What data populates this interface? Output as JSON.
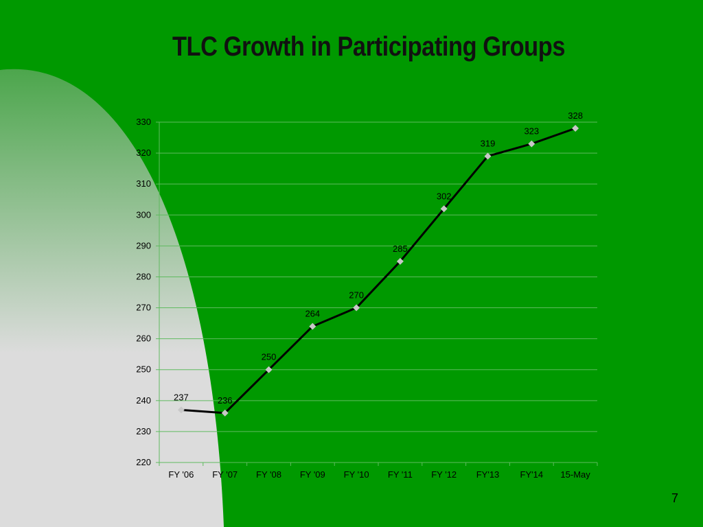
{
  "slide": {
    "title": "TLC Growth in Participating Groups",
    "page_number": "7"
  },
  "colors": {
    "background": "#009900",
    "swoosh_light": "#dcdcdc",
    "swoosh_mid": "#4ca64c",
    "gridline": "#5fba5f",
    "line": "#000000",
    "marker": "#c8c8c8"
  },
  "chart_data": {
    "type": "line",
    "title": "TLC Growth in Participating Groups",
    "xlabel": "",
    "ylabel": "",
    "categories": [
      "FY '06",
      "FY '07",
      "FY '08",
      "FY '09",
      "FY '10",
      "FY '11",
      "FY '12",
      "FY'13",
      "FY'14",
      "15-May"
    ],
    "series": [
      {
        "values": [
          237,
          236,
          250,
          264,
          270,
          285,
          302,
          319,
          323,
          328
        ]
      }
    ],
    "ylim": [
      220,
      330
    ],
    "yticks": [
      220,
      230,
      240,
      250,
      260,
      270,
      280,
      290,
      300,
      310,
      320,
      330
    ],
    "grid": true,
    "data_labels": true,
    "marker": "diamond",
    "legend": "none"
  }
}
